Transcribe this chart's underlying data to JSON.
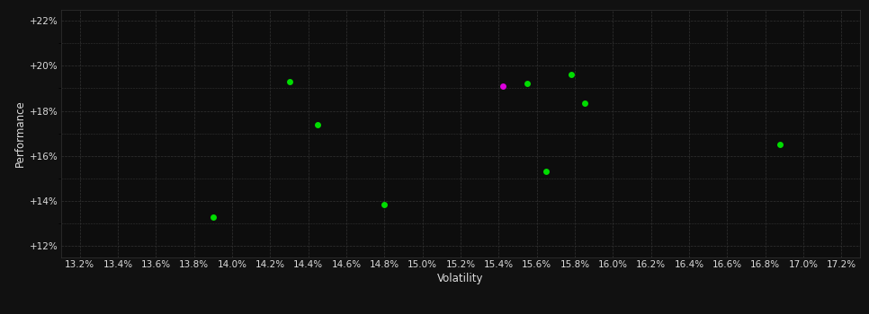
{
  "green_points": [
    [
      13.9,
      13.3
    ],
    [
      14.3,
      19.3
    ],
    [
      14.45,
      17.4
    ],
    [
      14.8,
      13.85
    ],
    [
      15.55,
      19.2
    ],
    [
      15.65,
      15.3
    ],
    [
      15.78,
      19.6
    ],
    [
      15.85,
      18.35
    ],
    [
      16.88,
      16.5
    ]
  ],
  "magenta_points": [
    [
      15.42,
      19.1
    ]
  ],
  "xlim": [
    13.1,
    17.3
  ],
  "ylim": [
    11.5,
    22.5
  ],
  "xticks": [
    13.2,
    13.4,
    13.6,
    13.8,
    14.0,
    14.2,
    14.4,
    14.6,
    14.8,
    15.0,
    15.2,
    15.4,
    15.6,
    15.8,
    16.0,
    16.2,
    16.4,
    16.6,
    16.8,
    17.0,
    17.2
  ],
  "yticks": [
    12,
    14,
    16,
    18,
    20,
    22
  ],
  "xlabel": "Volatility",
  "ylabel": "Performance",
  "background_color": "#111111",
  "plot_bg_color": "#0d0d0d",
  "grid_color": "#333333",
  "green_color": "#00dd00",
  "magenta_color": "#dd00dd",
  "text_color": "#dddddd",
  "marker_size": 5
}
